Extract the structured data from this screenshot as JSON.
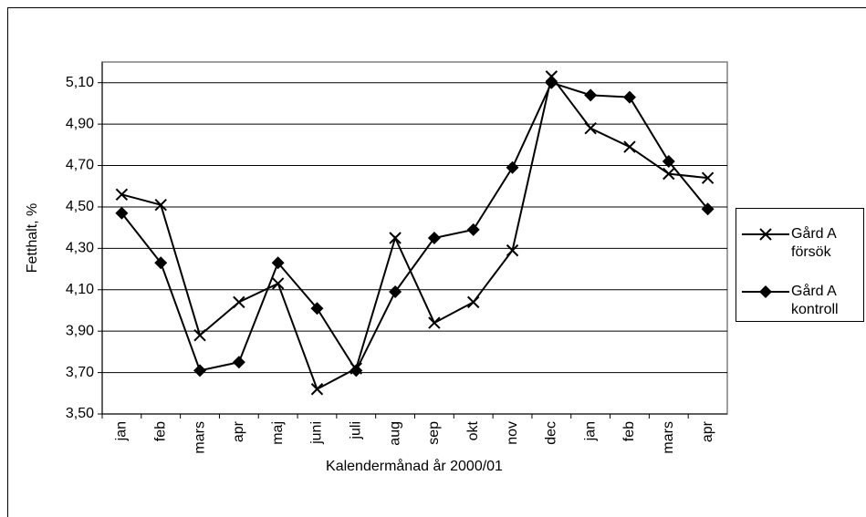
{
  "chart_data": {
    "type": "line",
    "x_label": "Kalendermånad år 2000/01",
    "y_label": "Fetthalt, %",
    "categories": [
      "jan",
      "feb",
      "mars",
      "apr",
      "maj",
      "juni",
      "juli",
      "aug",
      "sep",
      "okt",
      "nov",
      "dec",
      "jan",
      "feb",
      "mars",
      "apr"
    ],
    "series": [
      {
        "name": "Gård A försök",
        "color": "#000000",
        "marker": "x",
        "values": [
          4.56,
          4.51,
          3.88,
          4.04,
          4.13,
          3.62,
          3.72,
          4.35,
          3.94,
          4.04,
          4.29,
          5.13,
          4.88,
          4.79,
          4.66,
          4.64
        ]
      },
      {
        "name": "Gård A kontroll",
        "color": "#000000",
        "marker": "diamond",
        "values": [
          4.47,
          4.23,
          3.71,
          3.75,
          4.23,
          4.01,
          3.71,
          4.09,
          4.35,
          4.39,
          4.69,
          5.1,
          5.04,
          5.03,
          4.72,
          4.49
        ]
      }
    ],
    "ylim": [
      3.5,
      5.2
    ],
    "yticks": [
      {
        "value": 3.5,
        "label": "3,50"
      },
      {
        "value": 3.7,
        "label": "3,70"
      },
      {
        "value": 3.9,
        "label": "3,90"
      },
      {
        "value": 4.1,
        "label": "4,10"
      },
      {
        "value": 4.3,
        "label": "4,30"
      },
      {
        "value": 4.5,
        "label": "4,50"
      },
      {
        "value": 4.7,
        "label": "4,70"
      },
      {
        "value": 4.9,
        "label": "4,90"
      },
      {
        "value": 5.1,
        "label": "5,10"
      }
    ],
    "grid": true,
    "legend": "right"
  }
}
